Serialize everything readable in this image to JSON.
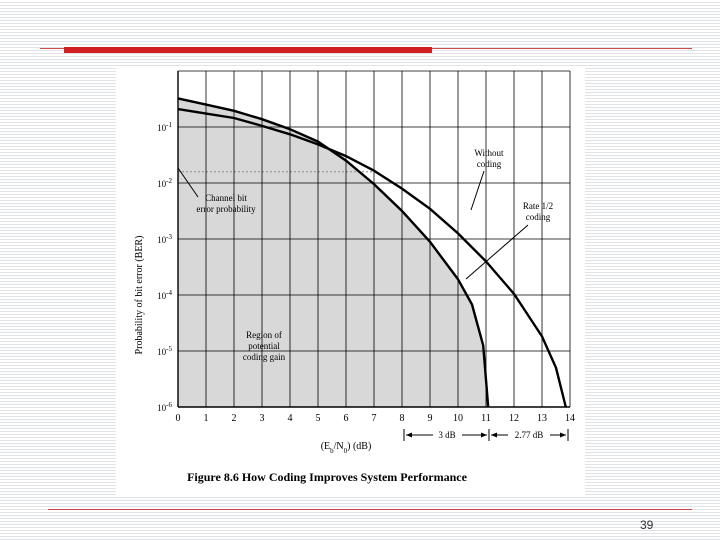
{
  "slide": {
    "page_number": "39",
    "accent_color": "#d21f1f",
    "caption": "Figure 8.6 How Coding Improves System Performance"
  },
  "chart_data": {
    "type": "line",
    "title": "",
    "xlabel": "(E_b/N_0) (dB)",
    "xlabel_parts": {
      "lead": "(E",
      "sub1": "b",
      "mid": "/N",
      "sub2": "0",
      "tail": ") (dB)"
    },
    "ylabel": "Probability of bit error (BER)",
    "x_ticks": [
      "0",
      "1",
      "2",
      "3",
      "4",
      "5",
      "6",
      "7",
      "8",
      "9",
      "10",
      "11",
      "12",
      "13",
      "14"
    ],
    "y_ticks": [
      {
        "base": "10",
        "exp": "-1",
        "value": -1
      },
      {
        "base": "10",
        "exp": "-2",
        "value": -2
      },
      {
        "base": "10",
        "exp": "-3",
        "value": -3
      },
      {
        "base": "10",
        "exp": "-4",
        "value": -4
      },
      {
        "base": "10",
        "exp": "-5",
        "value": -5
      },
      {
        "base": "10",
        "exp": "-6",
        "value": -6
      }
    ],
    "xlim": [
      0,
      14
    ],
    "ylim_log10": [
      -6,
      0
    ],
    "y_scale": "log",
    "grid": true,
    "series": [
      {
        "name": "Without coding",
        "log10_ber": [
          [
            0,
            -0.68
          ],
          [
            1,
            -0.76
          ],
          [
            2,
            -0.84
          ],
          [
            3,
            -0.98
          ],
          [
            4,
            -1.13
          ],
          [
            5,
            -1.31
          ],
          [
            6,
            -1.52
          ],
          [
            7,
            -1.78
          ],
          [
            8,
            -2.1
          ],
          [
            9,
            -2.46
          ],
          [
            10,
            -2.9
          ],
          [
            11,
            -3.4
          ],
          [
            12,
            -3.98
          ],
          [
            13,
            -4.74
          ],
          [
            13.5,
            -5.3
          ],
          [
            13.85,
            -6.0
          ]
        ]
      },
      {
        "name": "Rate 1/2 coding",
        "log10_ber": [
          [
            0,
            -0.49
          ],
          [
            1,
            -0.6
          ],
          [
            2,
            -0.71
          ],
          [
            3,
            -0.86
          ],
          [
            4,
            -1.04
          ],
          [
            5,
            -1.26
          ],
          [
            6,
            -1.6
          ],
          [
            7,
            -2.02
          ],
          [
            8,
            -2.5
          ],
          [
            9,
            -3.05
          ],
          [
            10,
            -3.72
          ],
          [
            10.5,
            -4.17
          ],
          [
            10.9,
            -4.9
          ],
          [
            11.08,
            -6.0
          ]
        ]
      }
    ],
    "channel_bit_error_level_log10": -1.8,
    "shaded_region": "under Rate 1/2 coding curve",
    "annotations": {
      "without_coding": [
        "Without",
        "coding"
      ],
      "rate_half": [
        "Rate 1/2",
        "coding"
      ],
      "channel": [
        "Channel bit",
        "error probability"
      ],
      "region": [
        "Region of",
        "potential",
        "coding gain"
      ],
      "gain_3db": "3 dB",
      "gain_277db": "2.77 dB"
    }
  }
}
